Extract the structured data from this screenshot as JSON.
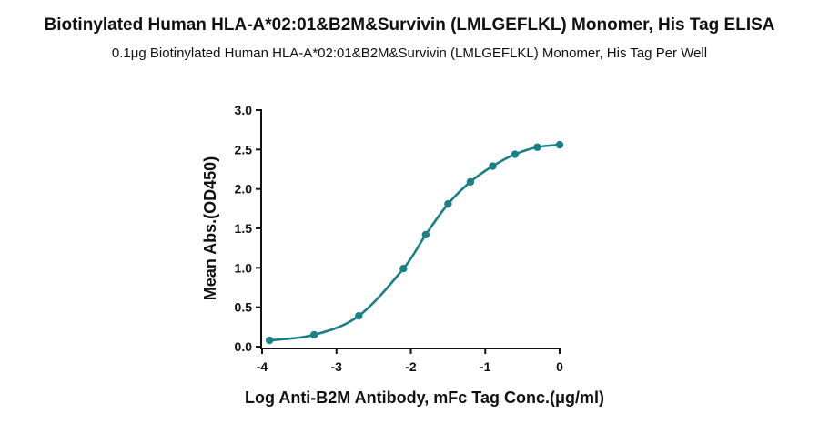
{
  "chart_data": {
    "type": "line",
    "title": "Biotinylated Human HLA-A*02:01&B2M&Survivin (LMLGEFLKL) Monomer, His Tag ELISA",
    "subtitle": "0.1μg Biotinylated Human HLA-A*02:01&B2M&Survivin (LMLGEFLKL) Monomer, His Tag Per Well",
    "xlabel": "Log Anti-B2M Antibody, mFc Tag Conc.(μg/ml)",
    "ylabel": "Mean Abs.(OD450)",
    "xlim": [
      -4,
      0
    ],
    "ylim": [
      0,
      3.0
    ],
    "xticks": [
      -4,
      -3,
      -2,
      -1,
      0
    ],
    "yticks": [
      0.0,
      0.5,
      1.0,
      1.5,
      2.0,
      2.5,
      3.0
    ],
    "xtick_labels": [
      "-4",
      "-3",
      "-2",
      "-1",
      "0"
    ],
    "ytick_labels": [
      "0.0",
      "0.5",
      "1.0",
      "1.5",
      "2.0",
      "2.5",
      "3.0"
    ],
    "grid": false,
    "color": "#1a7f86",
    "series": [
      {
        "x": [
          -3.9,
          -3.3,
          -2.7,
          -2.1,
          -1.8,
          -1.5,
          -1.2,
          -0.9,
          -0.6,
          -0.3,
          0.0
        ],
        "y": [
          0.08,
          0.15,
          0.39,
          0.99,
          1.42,
          1.81,
          2.09,
          2.29,
          2.44,
          2.53,
          2.56
        ]
      }
    ]
  }
}
